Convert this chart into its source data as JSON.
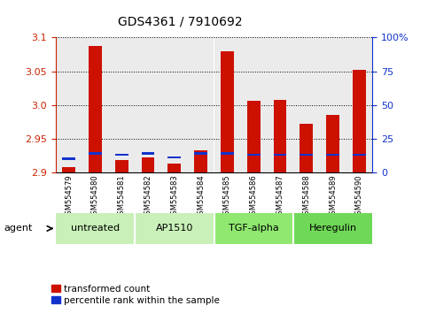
{
  "title": "GDS4361 / 7910692",
  "samples": [
    "GSM554579",
    "GSM554580",
    "GSM554581",
    "GSM554582",
    "GSM554583",
    "GSM554584",
    "GSM554585",
    "GSM554586",
    "GSM554587",
    "GSM554588",
    "GSM554589",
    "GSM554590"
  ],
  "red_values": [
    2.908,
    3.087,
    2.918,
    2.922,
    2.913,
    2.933,
    3.079,
    3.006,
    3.007,
    2.972,
    2.985,
    3.052
  ],
  "blue_values_pct": [
    10,
    14,
    13,
    14,
    11,
    14,
    14,
    13,
    13,
    13,
    13,
    13
  ],
  "ymin": 2.9,
  "ymax": 3.1,
  "yticks": [
    2.9,
    2.95,
    3.0,
    3.05,
    3.1
  ],
  "y2ticks": [
    0,
    25,
    50,
    75,
    100
  ],
  "y2labels": [
    "0",
    "25",
    "50",
    "75",
    "100%"
  ],
  "agents": [
    {
      "label": "untreated",
      "start": 0,
      "end": 2,
      "color": "#c8f0c0"
    },
    {
      "label": "AP1510",
      "start": 3,
      "end": 5,
      "color": "#c8f0c0"
    },
    {
      "label": "TGF-alpha",
      "start": 6,
      "end": 8,
      "color": "#98e888"
    },
    {
      "label": "Heregulin",
      "start": 9,
      "end": 11,
      "color": "#68e058"
    }
  ],
  "bar_width": 0.5,
  "red_color": "#cc1100",
  "blue_color": "#1133cc",
  "axis_color_left": "#cc2200",
  "axis_color_right": "#1133cc",
  "legend_red": "transformed count",
  "legend_blue": "percentile rank within the sample",
  "agent_label": "agent",
  "bar_base": 2.9,
  "sample_bg": "#d8d8d8",
  "agent_bg_light": "#c0f0b0",
  "agent_bg_dark": "#88dd78"
}
